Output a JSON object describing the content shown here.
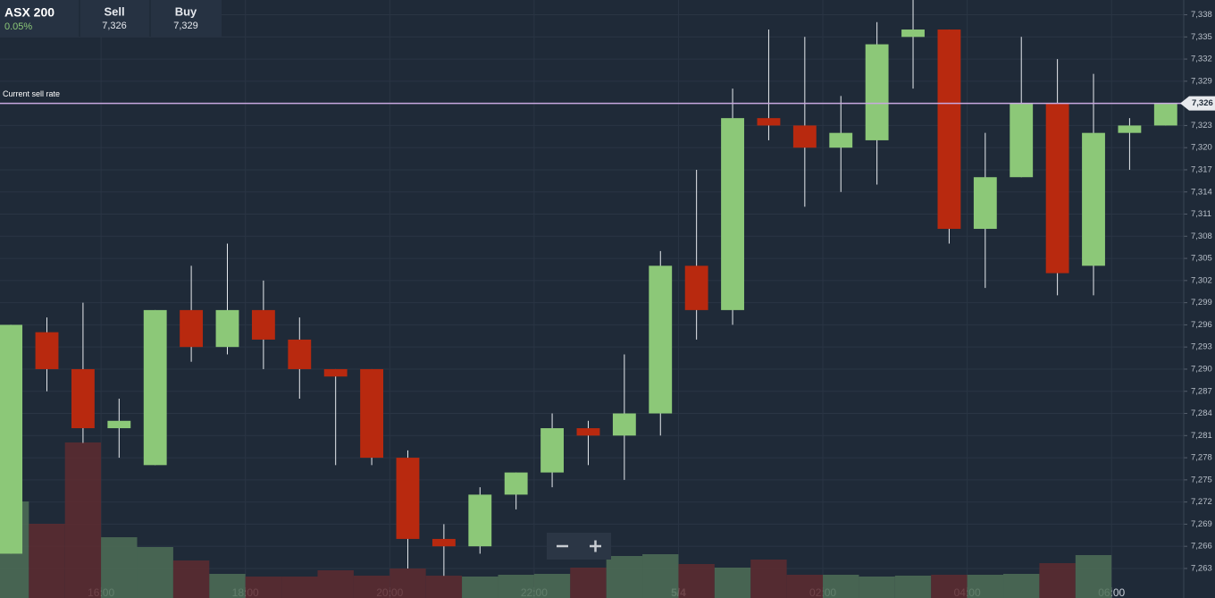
{
  "header": {
    "instrument": "ASX 200",
    "change": "0.05%",
    "sell_label": "Sell",
    "sell": "7,326",
    "buy_label": "Buy",
    "buy": "7,329"
  },
  "chart_data": {
    "type": "candlestick",
    "x": [
      14.5,
      15,
      15.5,
      16,
      16.5,
      17,
      17.5,
      18,
      18.5,
      19,
      19.5,
      20,
      20.5,
      21,
      21.5,
      22,
      22.5,
      23,
      23.5,
      24,
      24.5,
      25,
      25.5,
      26,
      26.5,
      27,
      27.5,
      28,
      28.5,
      29,
      29.5,
      30,
      30.5
    ],
    "xlim": [
      14.6,
      31.0
    ],
    "xticks": [
      {
        "value": 16,
        "label": "16:00"
      },
      {
        "value": 18,
        "label": "18:00"
      },
      {
        "value": 20,
        "label": "20:00"
      },
      {
        "value": 22,
        "label": "22:00"
      },
      {
        "value": 24,
        "label": "5/4"
      },
      {
        "value": 26,
        "label": "02:00"
      },
      {
        "value": 28,
        "label": "04:00"
      },
      {
        "value": 30,
        "label": "06:00"
      }
    ],
    "ylim": [
      7259,
      7340
    ],
    "yticks": [
      {
        "value": 7263,
        "label": "7,263"
      },
      {
        "value": 7266,
        "label": "7,266"
      },
      {
        "value": 7269,
        "label": "7,269"
      },
      {
        "value": 7272,
        "label": "7,272"
      },
      {
        "value": 7275,
        "label": "7,275"
      },
      {
        "value": 7278,
        "label": "7,278"
      },
      {
        "value": 7281,
        "label": "7,281"
      },
      {
        "value": 7284,
        "label": "7,284"
      },
      {
        "value": 7287,
        "label": "7,287"
      },
      {
        "value": 7290,
        "label": "7,290"
      },
      {
        "value": 7293,
        "label": "7,293"
      },
      {
        "value": 7296,
        "label": "7,296"
      },
      {
        "value": 7299,
        "label": "7,299"
      },
      {
        "value": 7302,
        "label": "7,302"
      },
      {
        "value": 7305,
        "label": "7,305"
      },
      {
        "value": 7308,
        "label": "7,308"
      },
      {
        "value": 7311,
        "label": "7,311"
      },
      {
        "value": 7314,
        "label": "7,314"
      },
      {
        "value": 7317,
        "label": "7,317"
      },
      {
        "value": 7320,
        "label": "7,320"
      },
      {
        "value": 7323,
        "label": "7,323"
      },
      {
        "value": 7326,
        "label": "7,326"
      },
      {
        "value": 7329,
        "label": "7,329"
      },
      {
        "value": 7332,
        "label": "7,332"
      },
      {
        "value": 7335,
        "label": "7,335"
      },
      {
        "value": 7338,
        "label": "7,338"
      }
    ],
    "grid": true,
    "up_color": "#8cc878",
    "down_color": "#b8290f",
    "open": [
      7265,
      7295,
      7290,
      7282,
      7277,
      7298,
      7293,
      7298,
      7294,
      7290,
      7290,
      7278,
      7267,
      7266,
      7273,
      7276,
      7282,
      7281,
      7284,
      7304,
      7298,
      7324,
      7323,
      7320,
      7321,
      7335,
      7336,
      7309,
      7316,
      7326,
      7304,
      7322,
      7323
    ],
    "high": [
      7296,
      7297,
      7299,
      7286,
      7298,
      7304,
      7307,
      7302,
      7297,
      7290,
      7290,
      7279,
      7269,
      7274,
      7276,
      7284,
      7283,
      7292,
      7306,
      7317,
      7328,
      7336,
      7335,
      7327,
      7337,
      7340,
      7336,
      7322,
      7335,
      7332,
      7330,
      7324,
      7326
    ],
    "low": [
      7265,
      7287,
      7280,
      7278,
      7277,
      7291,
      7292,
      7290,
      7286,
      7277,
      7277,
      7263,
      7262,
      7265,
      7271,
      7274,
      7277,
      7275,
      7281,
      7294,
      7296,
      7321,
      7312,
      7314,
      7315,
      7328,
      7307,
      7301,
      7316,
      7300,
      7300,
      7317,
      7323
    ],
    "close": [
      7296,
      7290,
      7282,
      7283,
      7298,
      7293,
      7298,
      7294,
      7290,
      7289,
      7278,
      7267,
      7266,
      7273,
      7276,
      7282,
      7281,
      7284,
      7304,
      7298,
      7324,
      7323,
      7320,
      7322,
      7334,
      7336,
      7309,
      7316,
      7326,
      7303,
      7322,
      7323,
      7326
    ],
    "volume": {
      "values": [
        108,
        83,
        174,
        68,
        57,
        42,
        27,
        24,
        24,
        31,
        25,
        33,
        25,
        24,
        26,
        27,
        34,
        47,
        49,
        38,
        34,
        43,
        26,
        26,
        24,
        25,
        26,
        26,
        27,
        39,
        48,
        null,
        null
      ],
      "axis": "y2",
      "up_color": "#4f6e57",
      "down_color": "#5e2b30"
    },
    "y2lim": [
      0,
      669
    ],
    "current_rate": {
      "label": "Current sell rate",
      "value": 7326,
      "value_label": "7,326",
      "color": "#c9a8e0"
    }
  }
}
